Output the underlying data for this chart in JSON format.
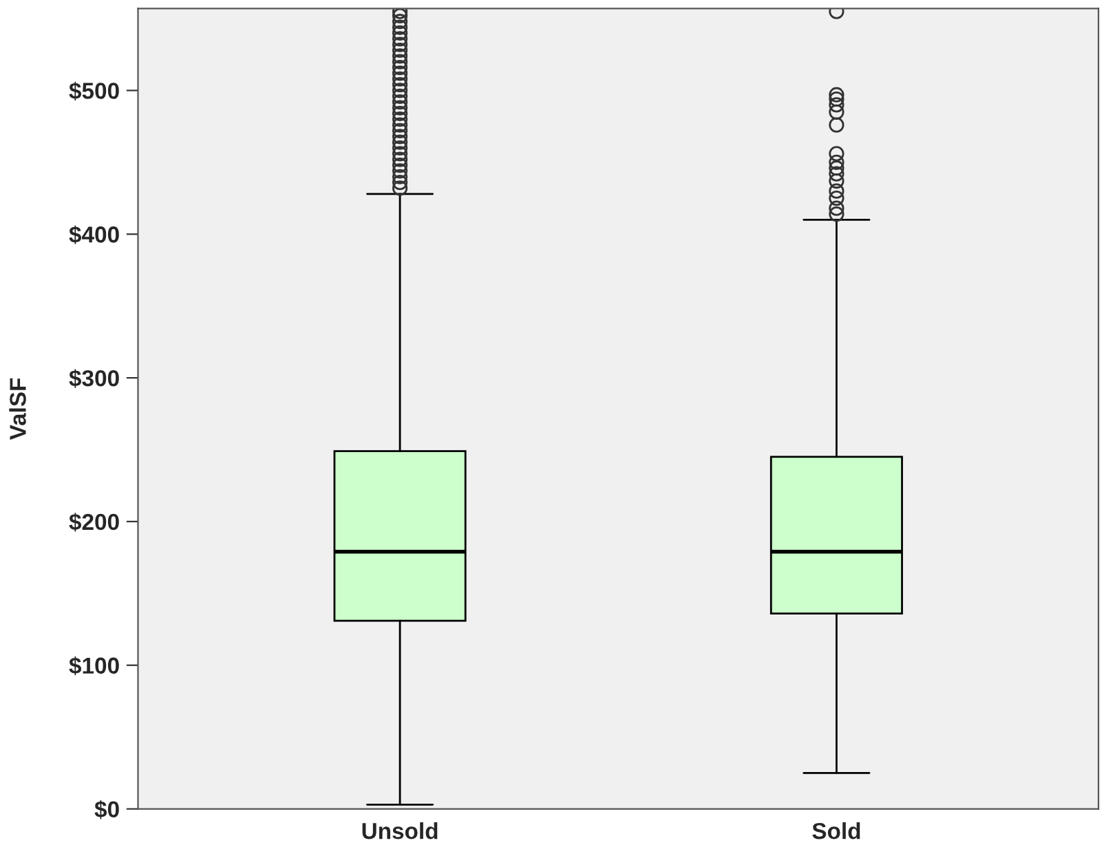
{
  "chart_data": {
    "type": "box",
    "ylabel": "ValSF",
    "categories": [
      "Unsold",
      "Sold"
    ],
    "color": "#ccffcc",
    "boxes": [
      {
        "low": 3,
        "q1": 131,
        "median": 179,
        "q3": 249,
        "high": 428,
        "outliers": [
          432,
          436,
          440,
          444,
          448,
          452,
          456,
          460,
          464,
          468,
          472,
          476,
          480,
          484,
          488,
          492,
          496,
          500,
          504,
          508,
          512,
          516,
          520,
          524,
          528,
          532,
          536,
          540,
          544,
          548,
          552,
          555
        ]
      },
      {
        "low": 25,
        "q1": 136,
        "median": 179,
        "q3": 245,
        "high": 410,
        "outliers": [
          414,
          418,
          425,
          430,
          437,
          442,
          446,
          450,
          456,
          476,
          485,
          490,
          494,
          497,
          555
        ]
      }
    ],
    "ylim": [
      0,
      557
    ],
    "yticks": [
      {
        "value": 0,
        "label": "$0"
      },
      {
        "value": 100,
        "label": "$100"
      },
      {
        "value": 200,
        "label": "$200"
      },
      {
        "value": 300,
        "label": "$300"
      },
      {
        "value": 400,
        "label": "$400"
      },
      {
        "value": 500,
        "label": "$500"
      }
    ],
    "grid": false
  }
}
